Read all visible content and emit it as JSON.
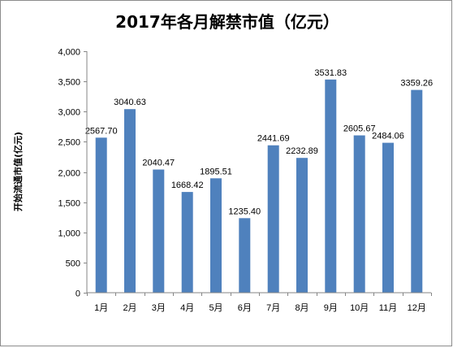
{
  "chart_data": {
    "type": "bar",
    "title": "2017年各月解禁市值（亿元）",
    "xlabel": "",
    "ylabel": "开始流通市值(亿元)",
    "categories": [
      "1月",
      "2月",
      "3月",
      "4月",
      "5月",
      "6月",
      "7月",
      "8月",
      "9月",
      "10月",
      "11月",
      "12月"
    ],
    "values": [
      2567.7,
      3040.63,
      2040.47,
      1668.42,
      1895.51,
      1235.4,
      2441.69,
      2232.89,
      3531.83,
      2605.67,
      2484.06,
      3359.26
    ],
    "data_labels": [
      "2567.70",
      "3040.63",
      "2040.47",
      "1668.42",
      "1895.51",
      "1235.40",
      "2441.69",
      "2232.89",
      "3531.83",
      "2605.67",
      "2484.06",
      "3359.26"
    ],
    "ylim": [
      0,
      4000
    ],
    "yticks": [
      0,
      500,
      1000,
      1500,
      2000,
      2500,
      3000,
      3500,
      4000
    ],
    "ytick_labels": [
      "0",
      "500",
      "1,000",
      "1,500",
      "2,000",
      "2,500",
      "3,000",
      "3,500",
      "4,000"
    ],
    "bar_color": "#4f81bd",
    "grid": false,
    "legend": "none"
  }
}
